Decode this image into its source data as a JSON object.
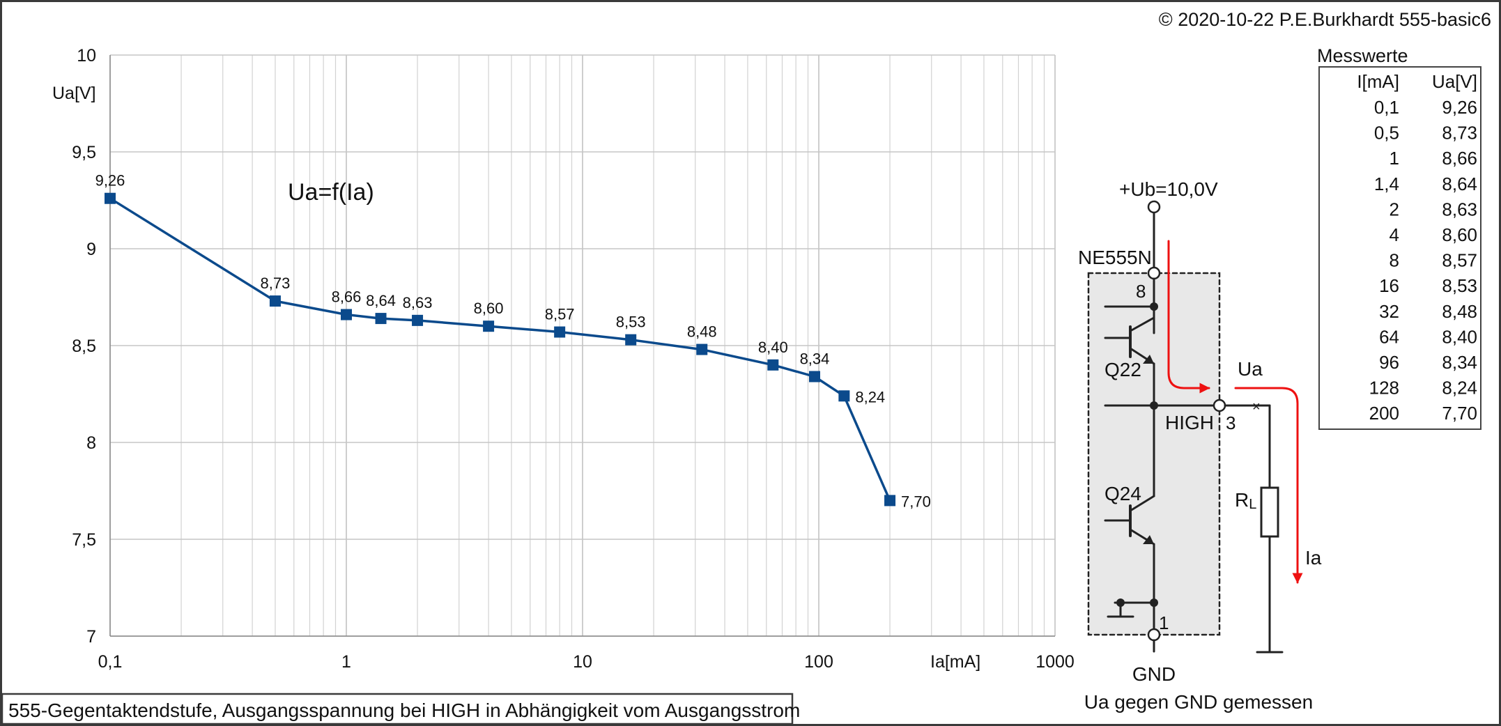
{
  "copyright": "© 2020-10-22 P.E.Burkhardt 555-basic6",
  "caption": "555-Gegentaktendstufe, Ausgangsspannung bei HIGH in Abhängigkeit vom Ausgangsstrom",
  "chart_data": {
    "type": "line",
    "title": "Ua=f(Ia)",
    "xlabel": "Ia[mA]",
    "ylabel": "Ua[V]",
    "xscale": "log",
    "xlim": [
      0.1,
      1000
    ],
    "ylim": [
      7,
      10
    ],
    "grid": true,
    "x_ticks": [
      "0,1",
      "1",
      "10",
      "100",
      "1000"
    ],
    "y_ticks": [
      "7",
      "7,5",
      "8",
      "8,5",
      "9",
      "9,5",
      "10"
    ],
    "y_tick_values": [
      7,
      7.5,
      8,
      8.5,
      9,
      9.5,
      10
    ],
    "x_tick_values": [
      0.1,
      1,
      10,
      100,
      1000
    ],
    "series": [
      {
        "color": "#0b4a8c",
        "x": [
          0.1,
          0.5,
          1,
          1.4,
          2,
          4,
          8,
          16,
          32,
          64,
          96,
          128,
          200
        ],
        "y": [
          9.26,
          8.73,
          8.66,
          8.64,
          8.63,
          8.6,
          8.57,
          8.53,
          8.48,
          8.4,
          8.34,
          8.24,
          7.7
        ],
        "labels": [
          "9,26",
          "8,73",
          "8,66",
          "8,64",
          "8,63",
          "8,60",
          "8,57",
          "8,53",
          "8,48",
          "8,40",
          "8,34",
          "8,24",
          "7,70"
        ]
      }
    ]
  },
  "table": {
    "title": "Messwerte",
    "headers": [
      "I[mA]",
      "Ua[V]"
    ],
    "rows": [
      [
        "0,1",
        "9,26"
      ],
      [
        "0,5",
        "8,73"
      ],
      [
        "1",
        "8,66"
      ],
      [
        "1,4",
        "8,64"
      ],
      [
        "2",
        "8,63"
      ],
      [
        "4",
        "8,60"
      ],
      [
        "8",
        "8,57"
      ],
      [
        "16",
        "8,53"
      ],
      [
        "32",
        "8,48"
      ],
      [
        "64",
        "8,40"
      ],
      [
        "96",
        "8,34"
      ],
      [
        "128",
        "8,24"
      ],
      [
        "200",
        "7,70"
      ]
    ]
  },
  "schematic": {
    "supply": "+Ub=10,0V",
    "chip": "NE555N",
    "pin8": "8",
    "pin3": "3",
    "pin1": "1",
    "q_upper": "Q22",
    "q_lower": "Q24",
    "state": "HIGH",
    "ua": "Ua",
    "ia": "Ia",
    "rl_main": "R",
    "rl_sub": "L",
    "gnd": "GND",
    "note": "Ua gegen GND gemessen",
    "arrow_color": "#ee1111"
  }
}
